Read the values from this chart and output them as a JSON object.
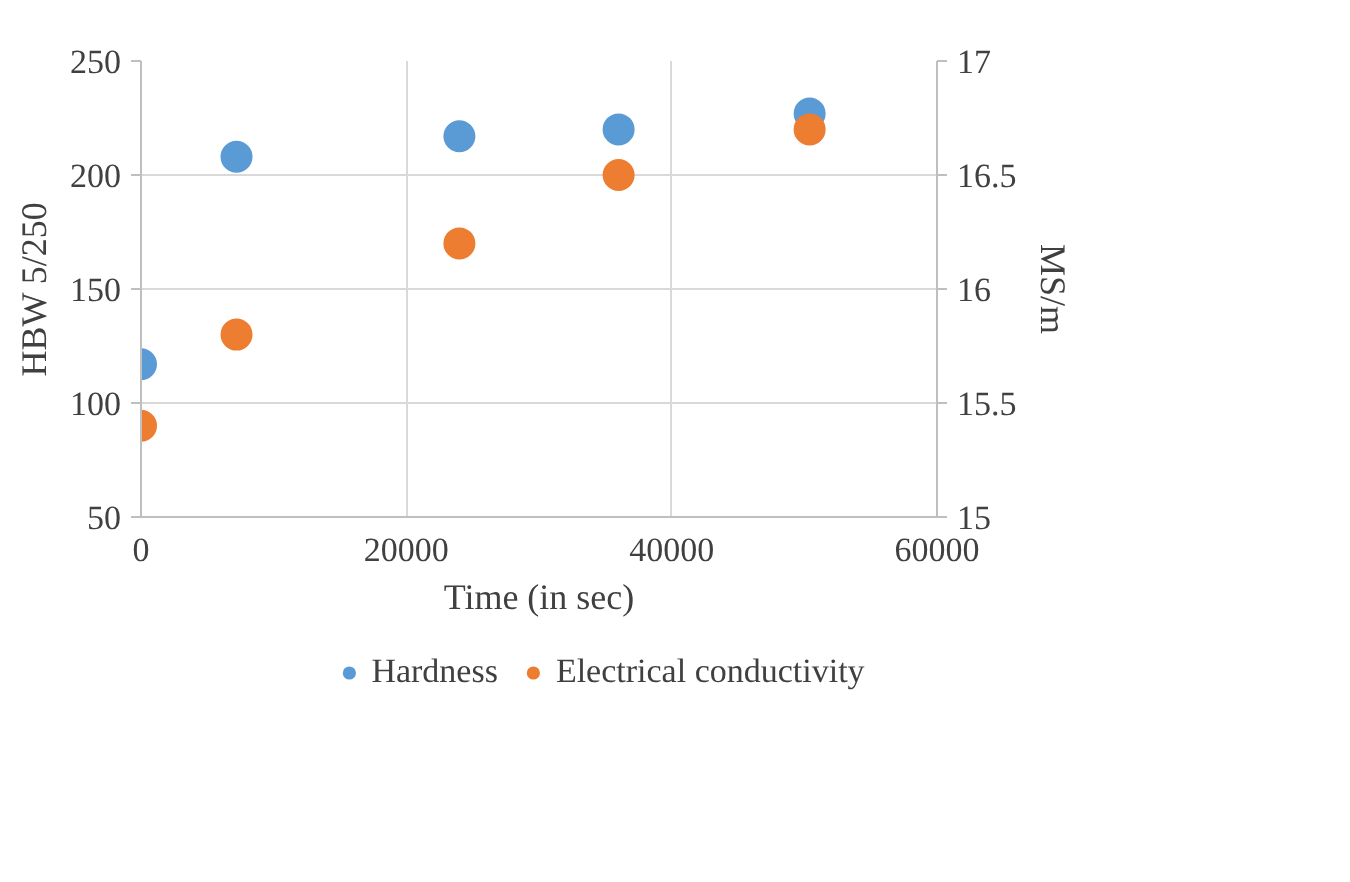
{
  "chart_data": {
    "type": "scatter",
    "xlabel": "Time (in sec)",
    "ylabel": "HBW 5/250",
    "y2label": "MS/m",
    "x": [
      0,
      7200,
      24000,
      36000,
      50400
    ],
    "series": [
      {
        "name": "Hardness",
        "color": "#5b9bd5",
        "values": [
          117,
          208,
          217,
          220,
          227
        ]
      },
      {
        "name": "Electrical conductivity",
        "color": "#ed7d31",
        "values": [
          15.4,
          15.8,
          16.2,
          16.5,
          16.7
        ],
        "axis": "y2"
      }
    ],
    "xlim": [
      0,
      60000
    ],
    "xticks": [
      0,
      20000,
      40000,
      60000
    ],
    "ylim": [
      50,
      250
    ],
    "yticks": [
      50,
      100,
      150,
      200,
      250
    ],
    "y2lim": [
      15,
      17
    ],
    "y2ticks": [
      15,
      15.5,
      16,
      16.5,
      17
    ],
    "grid": true,
    "legend": "bottom",
    "marker": "circle"
  }
}
